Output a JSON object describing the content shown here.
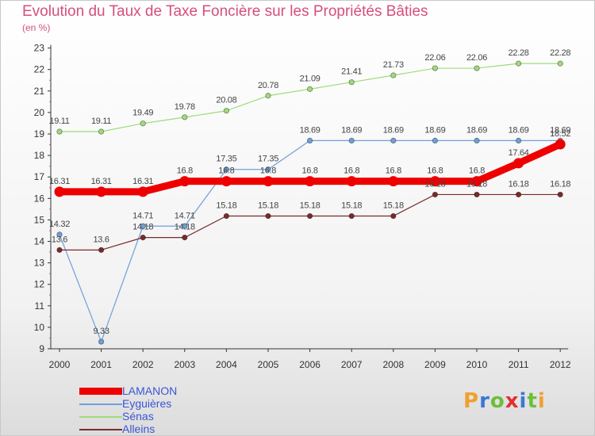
{
  "title": "Evolution du Taux de Taxe Foncière sur les Propriétés Bâties",
  "subtitle": "(en %)",
  "logo": {
    "letters": [
      "P",
      "r",
      "o",
      "x",
      "i",
      "t",
      "i"
    ],
    "colors": [
      "#f0a030",
      "#3a78d6",
      "#6cbf3a",
      "#e03030",
      "#3a78d6",
      "#6cbf3a",
      "#f0a030"
    ]
  },
  "chart_data": {
    "type": "line",
    "title": "Evolution du Taux de Taxe Foncière sur les Propriétés Bâties",
    "ylabel": "(en %)",
    "xlabel": "",
    "x": [
      "2000",
      "2001",
      "2002",
      "2003",
      "2004",
      "2005",
      "2006",
      "2007",
      "2008",
      "2009",
      "2010",
      "2011",
      "2012"
    ],
    "ylim": [
      9,
      23
    ],
    "yticks": [
      "9",
      "10",
      "11",
      "12",
      "13",
      "14",
      "15",
      "16",
      "17",
      "18",
      "19",
      "20",
      "21",
      "22",
      "23"
    ],
    "grid": false,
    "legend_position": "bottom-left",
    "series": [
      {
        "name": "LAMANON",
        "color": "#ee0000",
        "values": [
          16.31,
          16.31,
          16.31,
          16.8,
          16.8,
          16.8,
          16.8,
          16.8,
          16.8,
          16.8,
          16.8,
          17.64,
          18.52
        ],
        "labels": [
          "16.31",
          "16.31",
          "16.31",
          "16.8",
          "16.8",
          "16.8",
          "16.8",
          "16.8",
          "16.8",
          "16.8",
          "16.8",
          "17.64",
          "18.52"
        ]
      },
      {
        "name": "Eyguières",
        "color": "#6f9fd8",
        "values": [
          14.32,
          9.33,
          14.71,
          14.71,
          17.35,
          17.35,
          18.69,
          18.69,
          18.69,
          18.69,
          18.69,
          18.69,
          18.69
        ],
        "labels": [
          "14.32",
          "9.33",
          "14.71",
          "14.71",
          "17.35",
          "17.35",
          "18.69",
          "18.69",
          "18.69",
          "18.69",
          "18.69",
          "18.69",
          "18.69"
        ]
      },
      {
        "name": "Sénas",
        "color": "#9fdb7a",
        "values": [
          19.11,
          19.11,
          19.49,
          19.78,
          20.08,
          20.78,
          21.09,
          21.41,
          21.73,
          22.06,
          22.06,
          22.28,
          22.28
        ],
        "labels": [
          "19.11",
          "19.11",
          "19.49",
          "19.78",
          "20.08",
          "20.78",
          "21.09",
          "21.41",
          "21.73",
          "22.06",
          "22.06",
          "22.28",
          "22.28"
        ]
      },
      {
        "name": "Alleins",
        "color": "#7a2a2a",
        "values": [
          13.6,
          13.6,
          14.18,
          14.18,
          15.18,
          15.18,
          15.18,
          15.18,
          15.18,
          16.18,
          16.18,
          16.18,
          16.18
        ],
        "labels": [
          "13.6",
          "13.6",
          "14.18",
          "14.18",
          "15.18",
          "15.18",
          "15.18",
          "15.18",
          "15.18",
          "16.18",
          "16.18",
          "16.18",
          "16.18"
        ]
      }
    ]
  }
}
